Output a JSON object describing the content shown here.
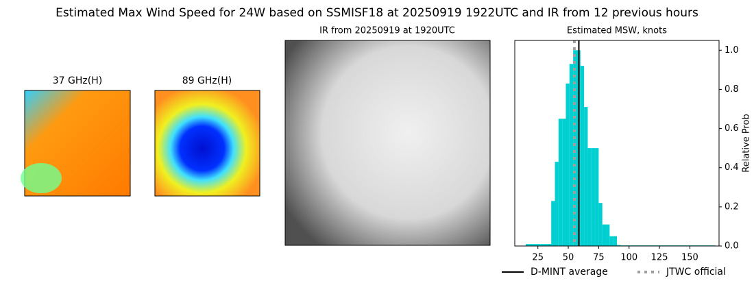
{
  "title": "Estimated Max Wind Speed for 24W based on SSMISF18 at 20250919 1922UTC and IR from 12 previous hours",
  "images": [
    {
      "title": "37 GHz(H)"
    },
    {
      "title": "89 GHz(H)"
    },
    {
      "title": "IR from 20250919 at 1920UTC"
    }
  ],
  "chart_data": {
    "type": "histogram",
    "title": "Estimated MSW, knots",
    "y_label": "Relative Prob",
    "color": "#00cfd1",
    "bins": [
      15,
      18,
      21,
      24,
      27,
      30,
      33,
      36,
      39,
      42,
      45,
      48,
      51,
      54,
      57,
      60,
      63,
      66,
      69,
      72,
      75,
      78,
      81,
      84,
      87,
      90,
      93,
      96,
      99,
      102,
      105,
      108,
      111,
      114,
      117,
      120,
      123,
      126,
      129,
      132,
      135,
      138,
      141,
      144,
      147,
      150,
      153,
      156,
      159,
      162,
      165,
      168,
      171
    ],
    "values": [
      0.01,
      0.01,
      0.01,
      0.01,
      0.01,
      0.01,
      0.01,
      0.23,
      0.43,
      0.65,
      0.65,
      0.83,
      0.93,
      1.0,
      1.0,
      0.92,
      0.71,
      0.5,
      0.5,
      0.5,
      0.22,
      0.11,
      0.11,
      0.05,
      0.05,
      0.005,
      0.003,
      0.003,
      0.003,
      0.003,
      0.003,
      0.003,
      0.003,
      0.003,
      0.003,
      0.003,
      0.003,
      0.003,
      0.003,
      0.003,
      0.003,
      0.003,
      0.003,
      0.003,
      0.003,
      0.003,
      0.003,
      0.003,
      0.003,
      0.003,
      0.003,
      0.003
    ],
    "xlim": [
      6,
      174
    ],
    "xticks": [
      25,
      50,
      75,
      100,
      125,
      150
    ],
    "ylim": [
      0,
      1.05
    ],
    "yticks": [
      {
        "value": 0,
        "label": "0.0"
      },
      {
        "value": 0.2,
        "label": "0.2"
      },
      {
        "value": 0.4,
        "label": "0.4"
      },
      {
        "value": 0.6,
        "label": "0.6"
      },
      {
        "value": 0.8,
        "label": "0.8"
      },
      {
        "value": 1.0,
        "label": "1.0"
      }
    ],
    "lines": [
      {
        "name": "D-MINT average",
        "value": 58.7,
        "color": "#000000",
        "style": "solid"
      },
      {
        "name": "JTWC official",
        "value": 55,
        "color": "#a0a0a0",
        "style": "dotted"
      }
    ]
  }
}
